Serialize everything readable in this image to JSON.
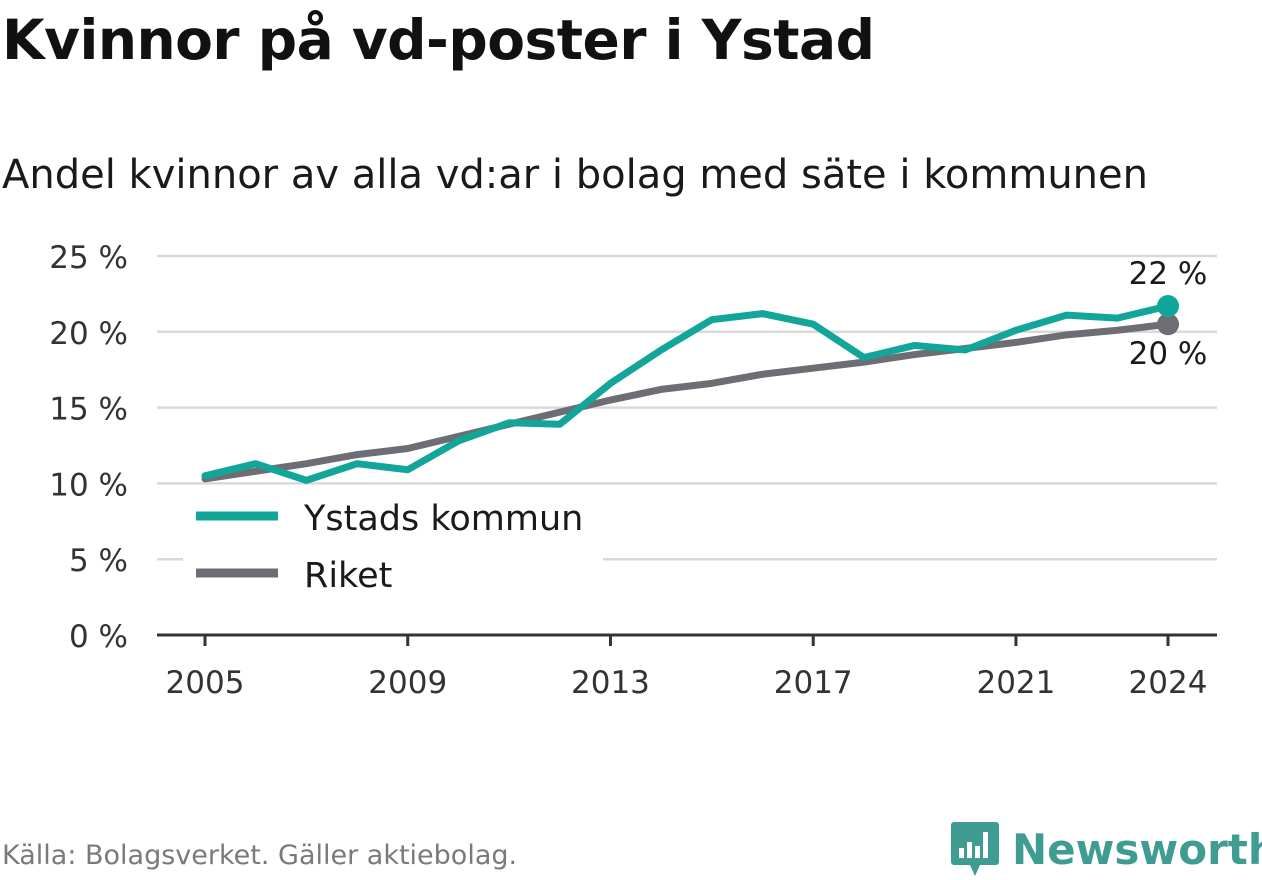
{
  "header": {
    "title": "Kvinnor på vd-poster i Ystad",
    "subtitle": "Andel kvinnor av alla vd:ar i bolag med säte i kommunen"
  },
  "footer": {
    "source": "Källa: Bolagsverket. Gäller aktiebolag.",
    "brand": "Newsworthy"
  },
  "colors": {
    "ystad": "#12a59a",
    "riket": "#6e6d73",
    "grid": "#d9d9d9",
    "axis": "#333333",
    "brand": "#3e9c93"
  },
  "chart_data": {
    "type": "line",
    "x": [
      2005,
      2006,
      2007,
      2008,
      2009,
      2010,
      2011,
      2012,
      2013,
      2014,
      2015,
      2016,
      2017,
      2018,
      2019,
      2020,
      2021,
      2022,
      2023,
      2024
    ],
    "series": [
      {
        "name": "Ystads kommun",
        "values": [
          10.5,
          11.3,
          10.2,
          11.3,
          10.9,
          12.8,
          14.0,
          13.9,
          16.6,
          18.8,
          20.8,
          21.2,
          20.5,
          18.3,
          19.1,
          18.8,
          20.1,
          21.1,
          20.9,
          21.7
        ]
      },
      {
        "name": "Riket",
        "values": [
          10.3,
          10.8,
          11.3,
          11.9,
          12.3,
          13.1,
          13.9,
          14.7,
          15.5,
          16.2,
          16.6,
          17.2,
          17.6,
          18.0,
          18.5,
          18.9,
          19.3,
          19.8,
          20.1,
          20.5
        ]
      }
    ],
    "ylim": [
      0,
      25
    ],
    "yticks": [
      0,
      5,
      10,
      15,
      20,
      25
    ],
    "ytick_labels": [
      "0 %",
      "5 %",
      "10 %",
      "15 %",
      "20 %",
      "25 %"
    ],
    "xticks": [
      2005,
      2009,
      2013,
      2017,
      2021,
      2024
    ],
    "xtick_labels": [
      "2005",
      "2009",
      "2013",
      "2017",
      "2021",
      "2024"
    ],
    "end_labels": [
      "22 %",
      "20 %"
    ],
    "grid": true,
    "legend": "bottom-left"
  }
}
